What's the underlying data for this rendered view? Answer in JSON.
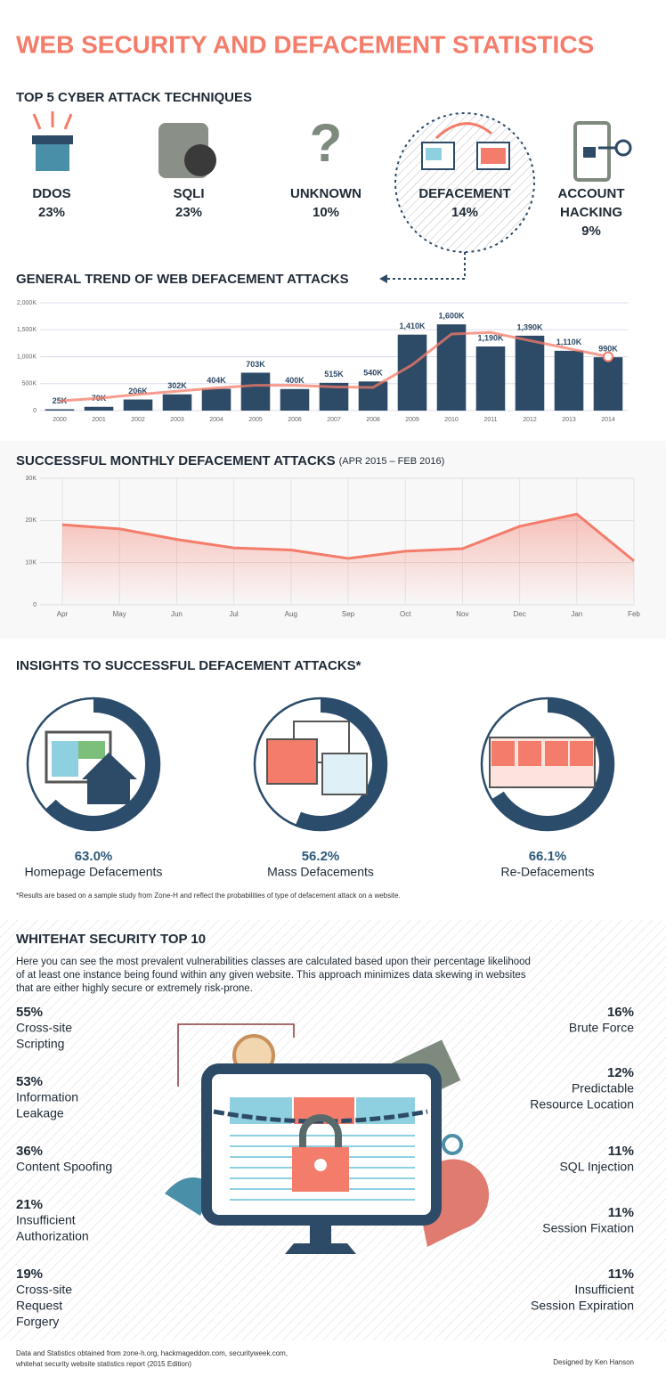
{
  "title": "WEB SECURITY AND DEFACEMENT STATISTICS",
  "top5": {
    "title": "TOP 5 CYBER ATTACK TECHNIQUES",
    "items": [
      {
        "name": [
          "DDOS"
        ],
        "value": "23%"
      },
      {
        "name": [
          "SQLI"
        ],
        "value": "23%"
      },
      {
        "name": [
          "UNKNOWN"
        ],
        "value": "10%"
      },
      {
        "name": [
          "DEFACEMENT"
        ],
        "value": "14%"
      },
      {
        "name": [
          "ACCOUNT",
          "HACKING"
        ],
        "value": "9%"
      }
    ]
  },
  "chart_data": [
    {
      "type": "bar",
      "title": "GENERAL TREND OF WEB DEFACEMENT ATTACKS",
      "categories": [
        "2000",
        "2001",
        "2002",
        "2003",
        "2004",
        "2005",
        "2006",
        "2007",
        "2008",
        "2009",
        "2010",
        "2011",
        "2012",
        "2013",
        "2014"
      ],
      "series": [
        {
          "color": "#2d4a66",
          "values": [
            25000,
            70000,
            206000,
            302000,
            404000,
            703000,
            400000,
            515000,
            540000,
            1410000,
            1600000,
            1190000,
            1390000,
            1110000,
            990000
          ],
          "value_labels": [
            "25K",
            "70K",
            "206K",
            "302K",
            "404K",
            "703K",
            "400K",
            "515K",
            "540K",
            "1,410K",
            "1,600K",
            "1,190K",
            "1,390K",
            "1,110K",
            "990K"
          ]
        },
        {
          "color": "#f47c6a",
          "values": [
            180000,
            230000,
            300000,
            360000,
            420000,
            470000,
            470000,
            440000,
            430000,
            850000,
            1420000,
            1450000,
            1300000,
            1150000,
            1000000
          ]
        }
      ],
      "ylim": [
        0,
        2000000
      ],
      "yticks": [
        0,
        {
          "value": 500000,
          "label": "500K"
        },
        {
          "value": 1000000,
          "label": "1,000K"
        },
        {
          "value": 1500000,
          "label": "1,500K"
        },
        {
          "value": 2000000,
          "label": "2,000K"
        }
      ],
      "grid": true
    },
    {
      "type": "line",
      "title": "SUCCESSFUL MONTHLY DEFACEMENT ATTACKS",
      "subtitle": "(APR 2015 – FEB 2016)",
      "categories": [
        "Apr",
        "May",
        "Jun",
        "Jul",
        "Aug",
        "Sep",
        "Oct",
        "Nov",
        "Dec",
        "Jan",
        "Feb"
      ],
      "values": [
        19000,
        18000,
        15500,
        13500,
        13000,
        11000,
        12700,
        13300,
        18600,
        21500,
        10400
      ],
      "color": "#f47c6a",
      "ylim": [
        0,
        30000
      ],
      "yticks": [
        0,
        {
          "value": 10000,
          "label": "10K"
        },
        {
          "value": 20000,
          "label": "20K"
        },
        {
          "value": 30000,
          "label": "30K"
        }
      ],
      "grid": true
    },
    {
      "type": "donut",
      "title": "INSIGHTS TO SUCCESSFUL DEFACEMENT ATTACKS*",
      "categories": [
        "Homepage Defacements",
        "Mass Defacements",
        "Re-Defacements"
      ],
      "values": [
        63,
        56.2,
        66.1
      ],
      "value_labels": [
        "63.0%",
        "56.2%",
        "66.1%"
      ],
      "color": "#2b4c6b",
      "note": "*Results are based on a sample study from Zone-H and reflect the probabilities of type of defacement attack on a website."
    }
  ],
  "top10": {
    "title": "WHITEHAT SECURITY TOP 10",
    "intro": [
      "Here you can see the most prevalent vulnerabilities classes are calculated based upon their percentage likelihood",
      "of at least one instance being found within any given website. This approach minimizes data skewing in websites",
      "that are either highly secure or extremely risk-prone."
    ],
    "left": [
      {
        "value": "55%",
        "name": [
          "Cross-site",
          "Scripting"
        ]
      },
      {
        "value": "53%",
        "name": [
          "Information",
          "Leakage"
        ]
      },
      {
        "value": "36%",
        "name": [
          "Content Spoofing"
        ]
      },
      {
        "value": "21%",
        "name": [
          "Insufficient",
          "Authorization"
        ]
      },
      {
        "value": "19%",
        "name": [
          "Cross-site",
          "Request",
          "Forgery"
        ]
      }
    ],
    "right": [
      {
        "value": "16%",
        "name": [
          "Brute Force"
        ]
      },
      {
        "value": "12%",
        "name": [
          "Predictable",
          "Resource Location"
        ]
      },
      {
        "value": "11%",
        "name": [
          "SQL Injection"
        ]
      },
      {
        "value": "11%",
        "name": [
          "Session Fixation"
        ]
      },
      {
        "value": "11%",
        "name": [
          "Insufficient",
          "Session Expiration"
        ]
      }
    ]
  },
  "footer": {
    "sources": [
      "Data and Statistics obtained from zone-h.org, hackmageddon.com, securityweek.com,",
      "whitehat security website statistics report (2015 Edition)"
    ],
    "credit": "Designed by Ken Hanson"
  }
}
